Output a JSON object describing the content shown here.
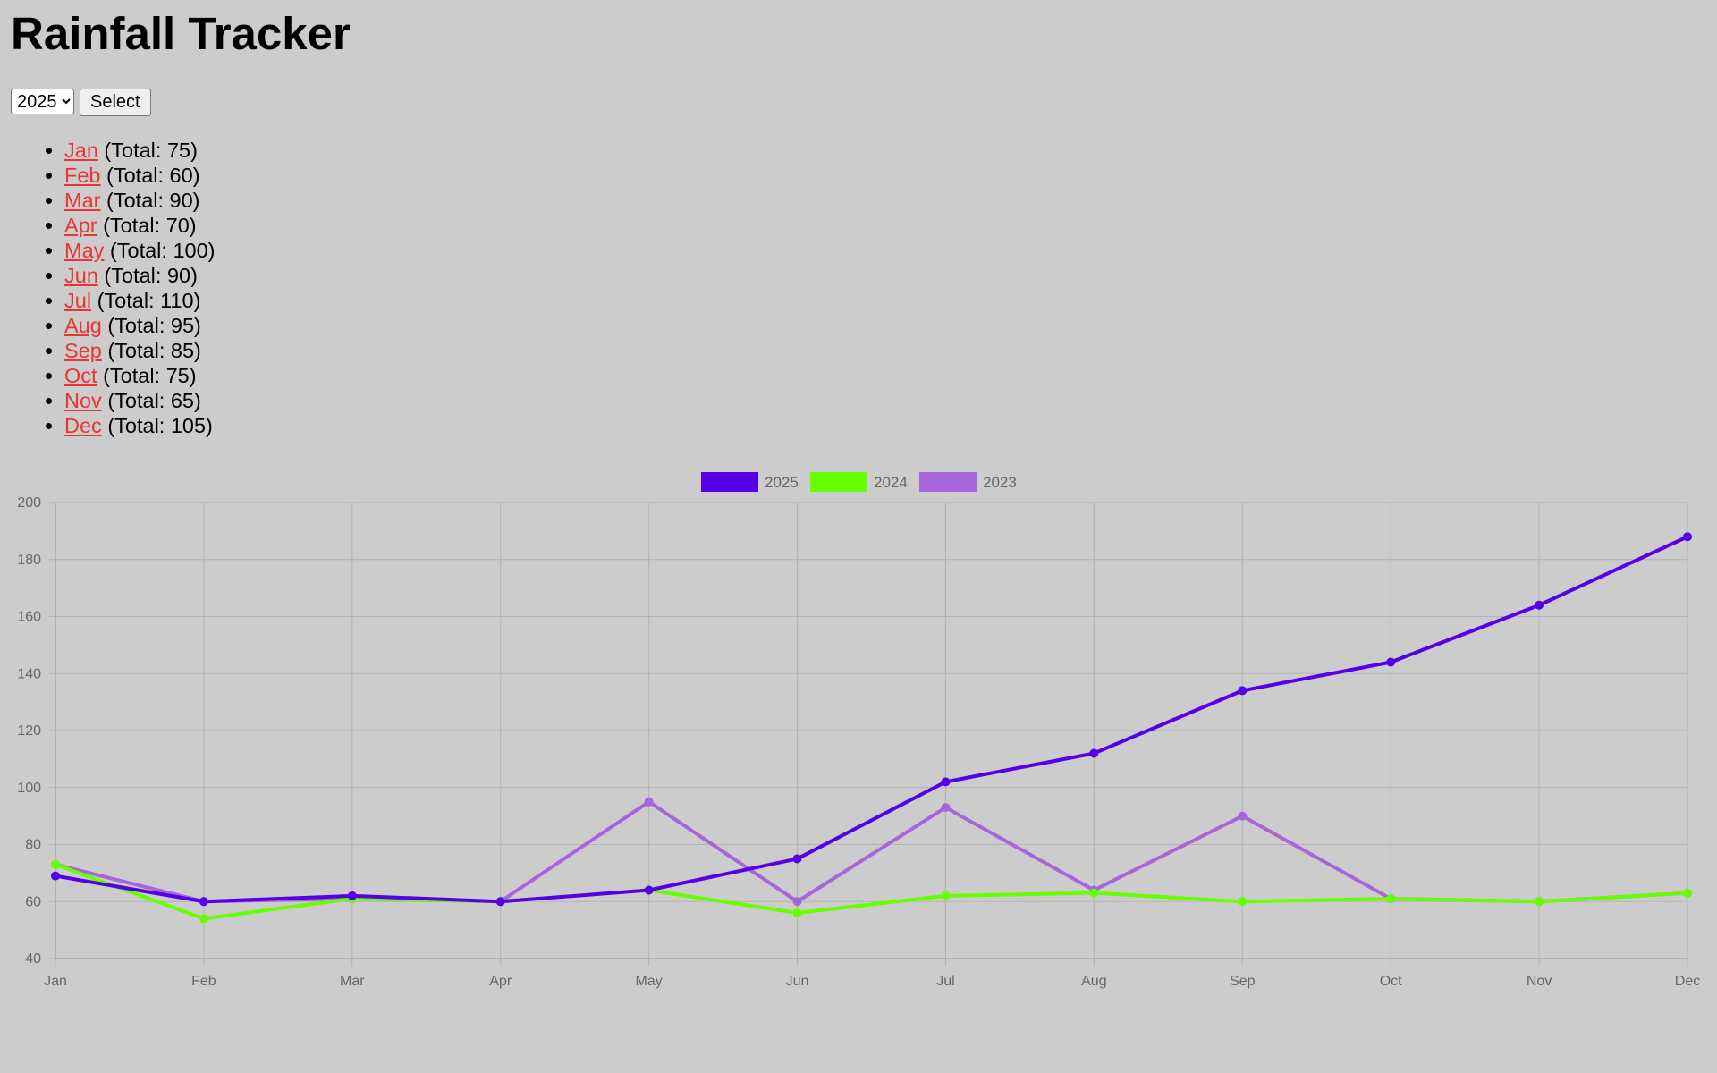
{
  "title": "Rainfall Tracker",
  "controls": {
    "year_options": [
      "2025"
    ],
    "selected_year": "2025",
    "select_label": "Select"
  },
  "months": [
    {
      "name": "Jan",
      "total_text": " (Total: 75)"
    },
    {
      "name": "Feb",
      "total_text": " (Total: 60)"
    },
    {
      "name": "Mar",
      "total_text": " (Total: 90)"
    },
    {
      "name": "Apr",
      "total_text": " (Total: 70)"
    },
    {
      "name": "May",
      "total_text": " (Total: 100)"
    },
    {
      "name": "Jun",
      "total_text": " (Total: 90)"
    },
    {
      "name": "Jul",
      "total_text": " (Total: 110)"
    },
    {
      "name": "Aug",
      "total_text": " (Total: 95)"
    },
    {
      "name": "Sep",
      "total_text": " (Total: 85)"
    },
    {
      "name": "Oct",
      "total_text": " (Total: 75)"
    },
    {
      "name": "Nov",
      "total_text": " (Total: 65)"
    },
    {
      "name": "Dec",
      "total_text": " (Total: 105)"
    }
  ],
  "link_color": "#ee3333",
  "chart_data": {
    "type": "line",
    "categories": [
      "Jan",
      "Feb",
      "Mar",
      "Apr",
      "May",
      "Jun",
      "Jul",
      "Aug",
      "Sep",
      "Oct",
      "Nov",
      "Dec"
    ],
    "series": [
      {
        "name": "2025",
        "color": "#5500e6",
        "values": [
          69,
          60,
          62,
          60,
          64,
          75,
          102,
          112,
          134,
          144,
          164,
          188
        ]
      },
      {
        "name": "2024",
        "color": "#66ff00",
        "values": [
          73,
          54,
          61,
          60,
          64,
          56,
          62,
          63,
          60,
          61,
          60,
          63
        ]
      },
      {
        "name": "2023",
        "color": "#a666d9",
        "values": [
          73,
          60,
          61,
          60,
          95,
          60,
          93,
          64,
          90,
          61,
          60,
          63
        ]
      }
    ],
    "ylim": [
      40,
      200
    ],
    "yticks": [
      40,
      60,
      80,
      100,
      120,
      140,
      160,
      180,
      200
    ],
    "grid": true,
    "legend_position": "top-center"
  }
}
